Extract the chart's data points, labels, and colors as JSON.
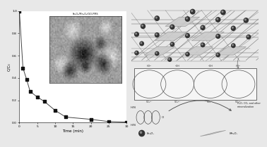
{
  "plot_data": {
    "x": [
      0,
      1,
      2,
      3,
      5,
      7,
      10,
      13,
      20,
      25,
      30
    ],
    "y": [
      1.0,
      0.49,
      0.39,
      0.28,
      0.23,
      0.19,
      0.11,
      0.05,
      0.03,
      0.01,
      0.005
    ],
    "xlabel": "Time (min)",
    "ylabel": "C/C₀",
    "inset_label": "Fe₃O₄/Mn₃O₄/GO-PMS",
    "xlim": [
      0,
      30
    ],
    "ylim": [
      0,
      1.0
    ],
    "xticks": [
      0,
      5,
      10,
      15,
      20,
      25,
      30
    ],
    "yticks": [
      0.0,
      0.2,
      0.4,
      0.6,
      0.8,
      1.0
    ]
  },
  "colors": {
    "background": "#e8e8e8",
    "plot_bg": "#ffffff",
    "line_color": "#444444",
    "marker_color": "#111111",
    "sphere_color": "#333333",
    "sphere_highlight": "#888888",
    "plate_color": "#cccccc",
    "plate_edge": "#999999",
    "box_bg": "#ffffff",
    "arrow_color": "#444444",
    "go_line_color": "#666666"
  },
  "diagram": {
    "legend_fe3o4": "Fe₃O₄",
    "legend_mn3o4": "Mn₃O₄",
    "cycle_labels_top": [
      "HO•",
      "•OH",
      "•OH",
      "HO•"
    ],
    "cycle_labels_bottom": [
      "SO₄•⁻",
      "SO₄•⁻",
      "SO₄•⁻",
      "SO₄•⁻"
    ],
    "right_text": "H₂O, CO₂ and other\nmineralization"
  }
}
